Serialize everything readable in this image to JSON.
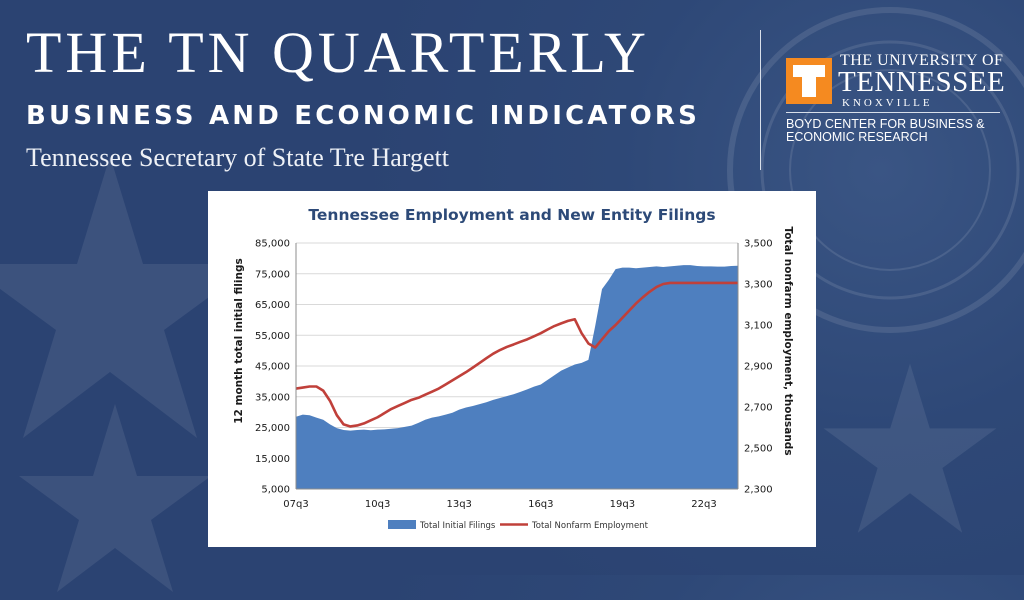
{
  "header": {
    "title": "THE TN QUARTERLY",
    "subtitle": "BUSINESS AND ECONOMIC INDICATORS",
    "byline": "Tennessee Secretary of State Tre Hargett"
  },
  "logo": {
    "letter": "T",
    "university": "THE UNIVERSITY OF",
    "name": "TENNESSEE",
    "city": "KNOXVILLE",
    "center_line1": "BOYD CENTER FOR BUSINESS &",
    "center_line2": "ECONOMIC RESEARCH",
    "color": "#f58a20"
  },
  "chart_data": {
    "type": "area",
    "title": "Tennessee Employment and New Entity Filings",
    "ylabel": "12 month total initial filings",
    "y2label": "Total nonfarm employment, thousands",
    "ylim": [
      5000,
      85000
    ],
    "y2lim": [
      2300,
      3500
    ],
    "yticks": [
      "85,000",
      "75,000",
      "65,000",
      "55,000",
      "45,000",
      "35,000",
      "25,000",
      "15,000",
      "5,000"
    ],
    "y2ticks": [
      "3,500",
      "3,300",
      "3,100",
      "2,900",
      "2,700",
      "2,500",
      "2,300"
    ],
    "xticks": [
      "07q3",
      "10q3",
      "13q3",
      "16q3",
      "19q3",
      "22q3"
    ],
    "xtick_index": [
      0,
      12,
      24,
      36,
      48,
      60
    ],
    "n_quarters": 66,
    "legend_position": "bottom",
    "series": [
      {
        "name": "Total Initial Filings",
        "type": "area",
        "axis": "left",
        "color": "#4e7fbf",
        "values": [
          28500,
          29200,
          29000,
          28200,
          27500,
          26000,
          24800,
          24200,
          24000,
          24200,
          24300,
          24100,
          24300,
          24400,
          24600,
          24800,
          25200,
          25600,
          26500,
          27500,
          28200,
          28600,
          29200,
          29800,
          30800,
          31500,
          32000,
          32600,
          33200,
          34000,
          34600,
          35200,
          35800,
          36600,
          37400,
          38300,
          39000,
          40500,
          42000,
          43500,
          44500,
          45500,
          46000,
          47000,
          58000,
          70000,
          73000,
          76500,
          77000,
          77000,
          76800,
          77000,
          77200,
          77400,
          77200,
          77400,
          77600,
          77800,
          77800,
          77500,
          77400,
          77400,
          77300,
          77300,
          77500,
          77600
        ]
      },
      {
        "name": "Total Nonfarm Employment",
        "type": "line",
        "axis": "right",
        "color": "#c0403a",
        "values": [
          2790,
          2795,
          2800,
          2800,
          2780,
          2730,
          2660,
          2615,
          2605,
          2610,
          2620,
          2635,
          2650,
          2670,
          2690,
          2705,
          2720,
          2735,
          2745,
          2760,
          2775,
          2790,
          2810,
          2830,
          2850,
          2870,
          2892,
          2915,
          2938,
          2960,
          2978,
          2993,
          3005,
          3018,
          3030,
          3045,
          3060,
          3078,
          3095,
          3108,
          3120,
          3128,
          3060,
          3010,
          2990,
          3030,
          3070,
          3100,
          3135,
          3170,
          3205,
          3235,
          3262,
          3285,
          3300,
          3305,
          3305,
          3305,
          3305,
          3305,
          3305,
          3305,
          3305,
          3305,
          3305,
          3305
        ]
      }
    ]
  }
}
